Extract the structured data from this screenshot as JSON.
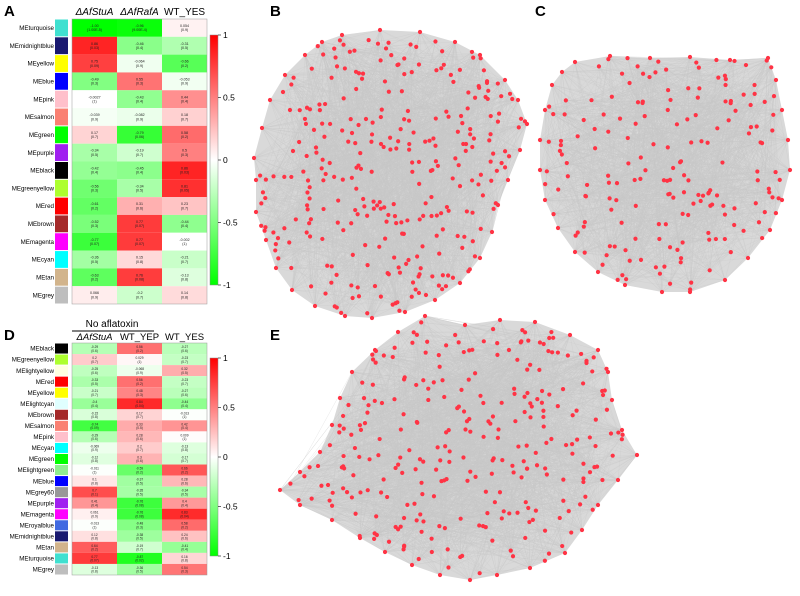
{
  "panels": {
    "A": {
      "letter": "A",
      "columns": [
        "ΔAfStuA",
        "ΔAfRafA",
        "WT_YES"
      ],
      "rows": [
        {
          "label": "MEturquoise",
          "color": "#40e0d0",
          "cells": [
            {
              "value": "-1.00",
              "p": "(1.00E-5)",
              "v": -1.0
            },
            {
              "value": "-0.96",
              "p": "(9.00E-4)",
              "v": -0.96
            },
            {
              "value": "0.054",
              "p": "(0.9)",
              "v": 0.05
            }
          ]
        },
        {
          "label": "MEmidnightblue",
          "color": "#191970",
          "cells": [
            {
              "value": "0.86",
              "p": "(0.03)",
              "v": 0.86
            },
            {
              "value": "-0.46",
              "p": "(0.4)",
              "v": -0.46
            },
            {
              "value": "-0.31",
              "p": "(0.5)",
              "v": -0.31
            }
          ]
        },
        {
          "label": "MEyellow",
          "color": "#ffff00",
          "cells": [
            {
              "value": "0.75",
              "p": "(0.09)",
              "v": 0.75
            },
            {
              "value": "-0.064",
              "p": "(0.9)",
              "v": -0.06
            },
            {
              "value": "-0.66",
              "p": "(0.2)",
              "v": -0.66
            }
          ]
        },
        {
          "label": "MEblue",
          "color": "#0000ff",
          "cells": [
            {
              "value": "-0.49",
              "p": "(0.3)",
              "v": -0.49
            },
            {
              "value": "0.55",
              "p": "(0.3)",
              "v": 0.55
            },
            {
              "value": "-0.053",
              "p": "(0.9)",
              "v": -0.05
            }
          ]
        },
        {
          "label": "MEpink",
          "color": "#ffc0cb",
          "cells": [
            {
              "value": "-0.0027",
              "p": "(1)",
              "v": 0.0
            },
            {
              "value": "-0.43",
              "p": "(0.4)",
              "v": -0.43
            },
            {
              "value": "0.44",
              "p": "(0.4)",
              "v": 0.44
            }
          ]
        },
        {
          "label": "MEsalmon",
          "color": "#fa8072",
          "cells": [
            {
              "value": "-0.039",
              "p": "(0.9)",
              "v": -0.04
            },
            {
              "value": "-0.082",
              "p": "(0.9)",
              "v": -0.08
            },
            {
              "value": "0.18",
              "p": "(0.7)",
              "v": 0.18
            }
          ]
        },
        {
          "label": "MEgreen",
          "color": "#00ff00",
          "cells": [
            {
              "value": "0.17",
              "p": "(0.7)",
              "v": 0.17
            },
            {
              "value": "-0.79",
              "p": "(0.06)",
              "v": -0.79
            },
            {
              "value": "0.58",
              "p": "(0.2)",
              "v": 0.58
            }
          ]
        },
        {
          "label": "MEpurple",
          "color": "#a020f0",
          "cells": [
            {
              "value": "-0.34",
              "p": "(0.5)",
              "v": -0.34
            },
            {
              "value": "-0.19",
              "p": "(0.7)",
              "v": -0.19
            },
            {
              "value": "0.5",
              "p": "(0.3)",
              "v": 0.5
            }
          ]
        },
        {
          "label": "MEblack",
          "color": "#000000",
          "cells": [
            {
              "value": "-0.42",
              "p": "(0.4)",
              "v": -0.42
            },
            {
              "value": "-0.45",
              "p": "(0.4)",
              "v": -0.45
            },
            {
              "value": "0.86",
              "p": "(0.03)",
              "v": 0.86
            }
          ]
        },
        {
          "label": "MEgreenyellow",
          "color": "#adff2f",
          "cells": [
            {
              "value": "-0.56",
              "p": "(0.3)",
              "v": -0.56
            },
            {
              "value": "-0.34",
              "p": "(0.5)",
              "v": -0.34
            },
            {
              "value": "0.81",
              "p": "(0.05)",
              "v": 0.81
            }
          ]
        },
        {
          "label": "MEred",
          "color": "#ff0000",
          "cells": [
            {
              "value": "-0.61",
              "p": "(0.2)",
              "v": -0.61
            },
            {
              "value": "0.31",
              "p": "(0.6)",
              "v": 0.31
            },
            {
              "value": "0.23",
              "p": "(0.7)",
              "v": 0.23
            }
          ]
        },
        {
          "label": "MEbrown",
          "color": "#a52a2a",
          "cells": [
            {
              "value": "-0.52",
              "p": "(0.3)",
              "v": -0.52
            },
            {
              "value": "0.77",
              "p": "(0.07)",
              "v": 0.77
            },
            {
              "value": "-0.44",
              "p": "(0.4)",
              "v": -0.44
            }
          ]
        },
        {
          "label": "MEmagenta",
          "color": "#ff00ff",
          "cells": [
            {
              "value": "-0.77",
              "p": "(0.07)",
              "v": -0.77
            },
            {
              "value": "0.77",
              "p": "(0.07)",
              "v": 0.77
            },
            {
              "value": "-0.002",
              "p": "(1)",
              "v": 0.0
            }
          ]
        },
        {
          "label": "MEcyan",
          "color": "#00ffff",
          "cells": [
            {
              "value": "-0.36",
              "p": "(0.5)",
              "v": -0.36
            },
            {
              "value": "0.15",
              "p": "(0.8)",
              "v": 0.15
            },
            {
              "value": "-0.21",
              "p": "(0.7)",
              "v": -0.21
            }
          ]
        },
        {
          "label": "MEtan",
          "color": "#d2b48c",
          "cells": [
            {
              "value": "-0.63",
              "p": "(0.2)",
              "v": -0.63
            },
            {
              "value": "0.76",
              "p": "(0.08)",
              "v": 0.76
            },
            {
              "value": "-0.13",
              "p": "(0.8)",
              "v": -0.13
            }
          ]
        },
        {
          "label": "MEgrey",
          "color": "#bebebe",
          "cells": [
            {
              "value": "0.066",
              "p": "(0.9)",
              "v": 0.07
            },
            {
              "value": "-0.2",
              "p": "(0.7)",
              "v": -0.2
            },
            {
              "value": "0.14",
              "p": "(0.8)",
              "v": 0.14
            }
          ]
        }
      ]
    },
    "D": {
      "letter": "D",
      "group_header": "No aflatoxin",
      "columns": [
        "ΔAfStuA",
        "WT_YEP",
        "WT_YES"
      ],
      "rows": [
        {
          "label": "MEblack",
          "color": "#000000",
          "cells": [
            {
              "value": "-0.29",
              "p": "(0.6)",
              "v": -0.29
            },
            {
              "value": "0.56",
              "p": "(0.2)",
              "v": 0.56
            },
            {
              "value": "-0.27",
              "p": "(0.6)",
              "v": -0.27
            }
          ]
        },
        {
          "label": "MEgreenyellow",
          "color": "#adff2f",
          "cells": [
            {
              "value": "0.2",
              "p": "(0.7)",
              "v": 0.2
            },
            {
              "value": "0.029",
              "p": "(1)",
              "v": 0.03
            },
            {
              "value": "-0.23",
              "p": "(0.7)",
              "v": -0.23
            }
          ]
        },
        {
          "label": "MElightyellow",
          "color": "#ffffe0",
          "cells": [
            {
              "value": "-0.25",
              "p": "(0.6)",
              "v": -0.25
            },
            {
              "value": "-0.068",
              "p": "(0.9)",
              "v": -0.07
            },
            {
              "value": "0.32",
              "p": "(0.5)",
              "v": 0.32
            }
          ]
        },
        {
          "label": "MEred",
          "color": "#ff0000",
          "cells": [
            {
              "value": "-0.33",
              "p": "(0.5)",
              "v": -0.33
            },
            {
              "value": "0.56",
              "p": "(0.2)",
              "v": 0.56
            },
            {
              "value": "-0.23",
              "p": "(0.7)",
              "v": -0.23
            }
          ]
        },
        {
          "label": "MEyellow",
          "color": "#ffff00",
          "cells": [
            {
              "value": "-0.21",
              "p": "(0.7)",
              "v": -0.21
            },
            {
              "value": "0.48",
              "p": "(0.3)",
              "v": 0.48
            },
            {
              "value": "-0.27",
              "p": "(0.6)",
              "v": -0.27
            }
          ]
        },
        {
          "label": "MElightcyan",
          "color": "#e0ffff",
          "cells": [
            {
              "value": "-0.4",
              "p": "(0.4)",
              "v": -0.4
            },
            {
              "value": "0.84",
              "p": "(0.04)",
              "v": 0.84
            },
            {
              "value": "-0.44",
              "p": "(0.4)",
              "v": -0.44
            }
          ]
        },
        {
          "label": "MEbrown",
          "color": "#a52a2a",
          "cells": [
            {
              "value": "-0.15",
              "p": "(0.8)",
              "v": -0.15
            },
            {
              "value": "0.17",
              "p": "(0.7)",
              "v": 0.17
            },
            {
              "value": "-0.013",
              "p": "(1)",
              "v": -0.01
            }
          ]
        },
        {
          "label": "MEsalmon",
          "color": "#fa8072",
          "cells": [
            {
              "value": "-0.74",
              "p": "(0.09)",
              "v": -0.74
            },
            {
              "value": "0.33",
              "p": "(0.5)",
              "v": 0.33
            },
            {
              "value": "0.42",
              "p": "(0.4)",
              "v": 0.42
            }
          ]
        },
        {
          "label": "MEpink",
          "color": "#ffc0cb",
          "cells": [
            {
              "value": "-0.29",
              "p": "(0.6)",
              "v": -0.29
            },
            {
              "value": "0.28",
              "p": "(0.6)",
              "v": 0.28
            },
            {
              "value": "0.009",
              "p": "(1)",
              "v": 0.01
            }
          ]
        },
        {
          "label": "MEcyan",
          "color": "#00ffff",
          "cells": [
            {
              "value": "-0.069",
              "p": "(0.9)",
              "v": -0.07
            },
            {
              "value": "0.2",
              "p": "(0.7)",
              "v": 0.2
            },
            {
              "value": "-0.13",
              "p": "(0.8)",
              "v": -0.13
            }
          ]
        },
        {
          "label": "MEgreen",
          "color": "#00ff00",
          "cells": [
            {
              "value": "-0.12",
              "p": "(0.8)",
              "v": -0.12
            },
            {
              "value": "0.3",
              "p": "(0.6)",
              "v": 0.3
            },
            {
              "value": "-0.17",
              "p": "(0.7)",
              "v": -0.17
            }
          ]
        },
        {
          "label": "MElightgreen",
          "color": "#90ee90",
          "cells": [
            {
              "value": "-0.011",
              "p": "(1)",
              "v": -0.01
            },
            {
              "value": "-0.59",
              "p": "(0.2)",
              "v": -0.59
            },
            {
              "value": "0.66",
              "p": "(0.2)",
              "v": 0.66
            }
          ]
        },
        {
          "label": "MEblue",
          "color": "#0000ff",
          "cells": [
            {
              "value": "0.1",
              "p": "(0.8)",
              "v": 0.1
            },
            {
              "value": "-0.37",
              "p": "(0.5)",
              "v": -0.37
            },
            {
              "value": "0.28",
              "p": "(0.6)",
              "v": 0.28
            }
          ]
        },
        {
          "label": "MEgrey60",
          "color": "#999999",
          "cells": [
            {
              "value": "0.7",
              "p": "(0.1)",
              "v": 0.7
            },
            {
              "value": "-0.35",
              "p": "(0.5)",
              "v": -0.35
            },
            {
              "value": "-0.34",
              "p": "(0.5)",
              "v": -0.34
            }
          ]
        },
        {
          "label": "MEpurple",
          "color": "#a020f0",
          "cells": [
            {
              "value": "0.41",
              "p": "(0.4)",
              "v": 0.41
            },
            {
              "value": "-0.76",
              "p": "(0.08)",
              "v": -0.76
            },
            {
              "value": "0.4",
              "p": "(0.4)",
              "v": 0.4
            }
          ]
        },
        {
          "label": "MEmagenta",
          "color": "#ff00ff",
          "cells": [
            {
              "value": "0.061",
              "p": "(0.9)",
              "v": 0.06
            },
            {
              "value": "-0.76",
              "p": "(0.08)",
              "v": -0.76
            },
            {
              "value": "0.83",
              "p": "(0.04)",
              "v": 0.83
            }
          ]
        },
        {
          "label": "MEroyalblue",
          "color": "#4169e1",
          "cells": [
            {
              "value": "-0.013",
              "p": "(1)",
              "v": -0.01
            },
            {
              "value": "-0.48",
              "p": "(0.3)",
              "v": -0.48
            },
            {
              "value": "0.58",
              "p": "(0.2)",
              "v": 0.58
            }
          ]
        },
        {
          "label": "MEmidnightblue",
          "color": "#191970",
          "cells": [
            {
              "value": "0.12",
              "p": "(0.8)",
              "v": 0.12
            },
            {
              "value": "-0.38",
              "p": "(0.5)",
              "v": -0.38
            },
            {
              "value": "0.24",
              "p": "(0.6)",
              "v": 0.24
            }
          ]
        },
        {
          "label": "MEtan",
          "color": "#d2b48c",
          "cells": [
            {
              "value": "0.64",
              "p": "(0.2)",
              "v": 0.64
            },
            {
              "value": "-0.19",
              "p": "(0.7)",
              "v": -0.19
            },
            {
              "value": "-0.41",
              "p": "(0.4)",
              "v": -0.41
            }
          ]
        },
        {
          "label": "MEturquoise",
          "color": "#40e0d0",
          "cells": [
            {
              "value": "0.77",
              "p": "(0.07)",
              "v": 0.77
            },
            {
              "value": "-0.87",
              "p": "(0.02)",
              "v": -0.87
            },
            {
              "value": "0.16",
              "p": "(0.8)",
              "v": 0.16
            }
          ]
        },
        {
          "label": "MEgrey",
          "color": "#bebebe",
          "cells": [
            {
              "value": "-0.13",
              "p": "(0.8)",
              "v": -0.13
            },
            {
              "value": "-0.36",
              "p": "(0.5)",
              "v": -0.36
            },
            {
              "value": "0.54",
              "p": "(0.3)",
              "v": 0.54
            }
          ]
        }
      ]
    },
    "B": {
      "letter": "B"
    },
    "C": {
      "letter": "C"
    },
    "E": {
      "letter": "E"
    }
  },
  "colorbar": {
    "ticks": [
      "1",
      "0.5",
      "0",
      "-0.5",
      "-1"
    ],
    "top_color": "#ff0000",
    "mid_color": "#ffffff",
    "bottom_color": "#00ff00"
  },
  "network": {
    "node_color": "#ff3344",
    "edge_color": "#c8c8c8"
  },
  "chart_data": [
    {
      "type": "heatmap",
      "title": "",
      "panel": "A",
      "columns": [
        "ΔAfStuA",
        "ΔAfRafA",
        "WT_YES"
      ],
      "rows": [
        "MEturquoise",
        "MEmidnightblue",
        "MEyellow",
        "MEblue",
        "MEpink",
        "MEsalmon",
        "MEgreen",
        "MEpurple",
        "MEblack",
        "MEgreenyellow",
        "MEred",
        "MEbrown",
        "MEmagenta",
        "MEcyan",
        "MEtan",
        "MEgrey"
      ],
      "range": [
        -1,
        1
      ]
    },
    {
      "type": "heatmap",
      "title": "No aflatoxin",
      "panel": "D",
      "columns": [
        "ΔAfStuA",
        "WT_YEP",
        "WT_YES"
      ],
      "rows": [
        "MEblack",
        "MEgreenyellow",
        "MElightyellow",
        "MEred",
        "MEyellow",
        "MElightcyan",
        "MEbrown",
        "MEsalmon",
        "MEpink",
        "MEcyan",
        "MEgreen",
        "MElightgreen",
        "MEblue",
        "MEgrey60",
        "MEpurple",
        "MEmagenta",
        "MEroyalblue",
        "MEmidnightblue",
        "MEtan",
        "MEturquoise",
        "MEgrey"
      ],
      "range": [
        -1,
        1
      ]
    }
  ]
}
